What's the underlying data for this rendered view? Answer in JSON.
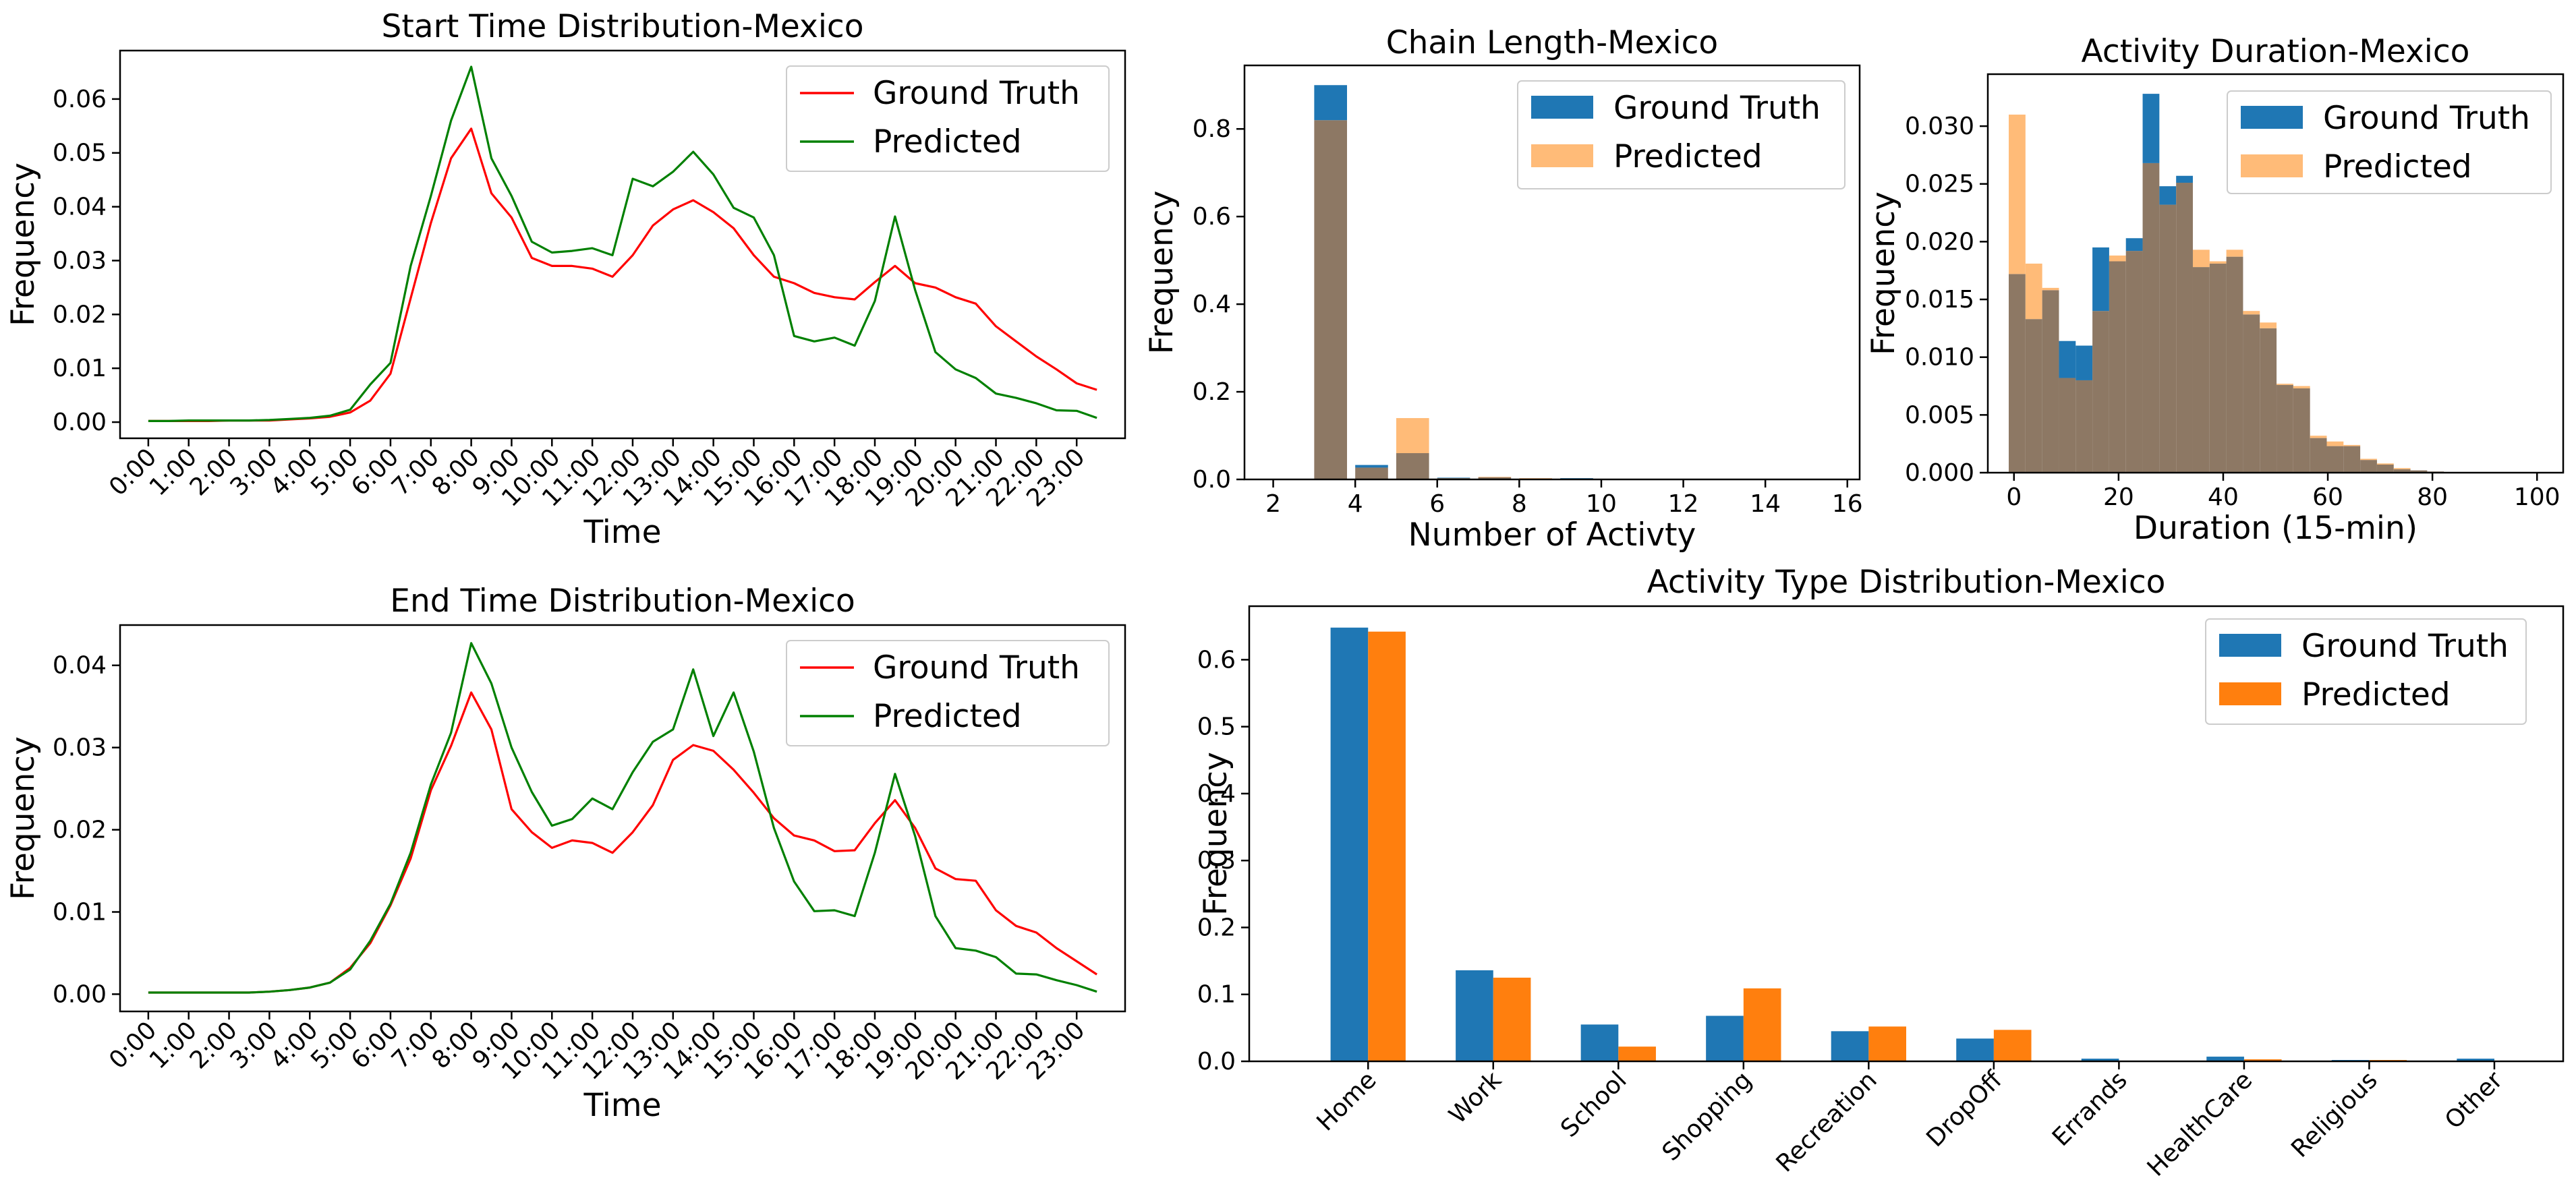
{
  "colors": {
    "red_line": "#ff0000",
    "green_line": "#008000",
    "hist_gt": "#1f77b4",
    "hist_pred": "#ffbb78",
    "hist_overlap": "#8d7864",
    "bar_gt": "#1f77b4",
    "bar_pred": "#ff7f0e"
  },
  "chart_data": [
    {
      "id": "start",
      "type": "line",
      "title": "Start Time Distribution-Mexico",
      "xlabel": "Time",
      "ylabel": "Frequency",
      "xlim": [
        -1.4,
        48.4
      ],
      "ylim": [
        -0.003,
        0.069
      ],
      "yticks": [
        0,
        0.01,
        0.02,
        0.03,
        0.04,
        0.05,
        0.06
      ],
      "ytick_labels": [
        "0.00",
        "0.01",
        "0.02",
        "0.03",
        "0.04",
        "0.05",
        "0.06"
      ],
      "xticks": [
        0,
        2,
        4,
        6,
        8,
        10,
        12,
        14,
        16,
        18,
        20,
        22,
        24,
        26,
        28,
        30,
        32,
        34,
        36,
        38,
        40,
        42,
        44,
        46
      ],
      "xtick_labels": [
        "0:00",
        "1:00",
        "2:00",
        "3:00",
        "4:00",
        "5:00",
        "6:00",
        "7:00",
        "8:00",
        "9:00",
        "10:00",
        "11:00",
        "12:00",
        "13:00",
        "14:00",
        "15:00",
        "16:00",
        "17:00",
        "18:00",
        "19:00",
        "20:00",
        "21:00",
        "22:00",
        "23:00"
      ],
      "series": [
        {
          "name": "Ground Truth",
          "color_key": "red_line",
          "values": [
            0.0002,
            0.0002,
            0.0002,
            0.0002,
            0.0003,
            0.0003,
            0.0003,
            0.0005,
            0.0007,
            0.001,
            0.0018,
            0.004,
            0.009,
            0.023,
            0.037,
            0.049,
            0.0545,
            0.0425,
            0.038,
            0.0305,
            0.029,
            0.029,
            0.0285,
            0.027,
            0.031,
            0.0365,
            0.0395,
            0.0412,
            0.039,
            0.036,
            0.031,
            0.027,
            0.0258,
            0.024,
            0.0232,
            0.0228,
            0.026,
            0.029,
            0.0258,
            0.025,
            0.0232,
            0.022,
            0.0178,
            0.015,
            0.0122,
            0.0098,
            0.0072,
            0.006
          ]
        },
        {
          "name": "Predicted",
          "color_key": "green_line",
          "values": [
            0.0002,
            0.0002,
            0.0003,
            0.0003,
            0.0003,
            0.0003,
            0.0004,
            0.0006,
            0.0008,
            0.0012,
            0.0023,
            0.007,
            0.011,
            0.029,
            0.042,
            0.056,
            0.066,
            0.049,
            0.042,
            0.0335,
            0.0315,
            0.0318,
            0.0323,
            0.031,
            0.0452,
            0.0438,
            0.0465,
            0.0502,
            0.046,
            0.0398,
            0.038,
            0.031,
            0.016,
            0.015,
            0.0157,
            0.0142,
            0.0225,
            0.0382,
            0.0245,
            0.013,
            0.0098,
            0.0082,
            0.0053,
            0.0045,
            0.0035,
            0.0022,
            0.0021,
            0.0008
          ]
        }
      ]
    },
    {
      "id": "end",
      "type": "line",
      "title": "End Time Distribution-Mexico",
      "xlabel": "Time",
      "ylabel": "Frequency",
      "xlim": [
        -1.4,
        48.4
      ],
      "ylim": [
        -0.0021,
        0.0449
      ],
      "yticks": [
        0,
        0.01,
        0.02,
        0.03,
        0.04
      ],
      "ytick_labels": [
        "0.00",
        "0.01",
        "0.02",
        "0.03",
        "0.04"
      ],
      "xticks": [
        0,
        2,
        4,
        6,
        8,
        10,
        12,
        14,
        16,
        18,
        20,
        22,
        24,
        26,
        28,
        30,
        32,
        34,
        36,
        38,
        40,
        42,
        44,
        46
      ],
      "xtick_labels": [
        "0:00",
        "1:00",
        "2:00",
        "3:00",
        "4:00",
        "5:00",
        "6:00",
        "7:00",
        "8:00",
        "9:00",
        "10:00",
        "11:00",
        "12:00",
        "13:00",
        "14:00",
        "15:00",
        "16:00",
        "17:00",
        "18:00",
        "19:00",
        "20:00",
        "21:00",
        "22:00",
        "23:00"
      ],
      "series": [
        {
          "name": "Ground Truth",
          "color_key": "red_line",
          "values": [
            0.0002,
            0.0002,
            0.0002,
            0.0002,
            0.0002,
            0.0002,
            0.0003,
            0.0005,
            0.0008,
            0.0014,
            0.0032,
            0.0062,
            0.0108,
            0.0165,
            0.0248,
            0.0302,
            0.0367,
            0.0322,
            0.0225,
            0.0197,
            0.0178,
            0.0187,
            0.0184,
            0.0172,
            0.0197,
            0.023,
            0.0285,
            0.0303,
            0.0296,
            0.0273,
            0.0245,
            0.0214,
            0.0193,
            0.0187,
            0.0174,
            0.0175,
            0.0208,
            0.0236,
            0.0202,
            0.0153,
            0.014,
            0.0138,
            0.0102,
            0.0083,
            0.0075,
            0.0056,
            0.004,
            0.0024
          ]
        },
        {
          "name": "Predicted",
          "color_key": "green_line",
          "values": [
            0.0002,
            0.0002,
            0.0002,
            0.0002,
            0.0002,
            0.0002,
            0.0003,
            0.0005,
            0.0008,
            0.0014,
            0.003,
            0.0065,
            0.011,
            0.0172,
            0.0255,
            0.0318,
            0.0427,
            0.0378,
            0.03,
            0.0246,
            0.0205,
            0.0213,
            0.0238,
            0.0225,
            0.027,
            0.0307,
            0.0322,
            0.0395,
            0.0314,
            0.0367,
            0.0295,
            0.0202,
            0.0137,
            0.0101,
            0.0102,
            0.0095,
            0.0172,
            0.0268,
            0.0192,
            0.0095,
            0.0056,
            0.0053,
            0.0045,
            0.0025,
            0.0024,
            0.0017,
            0.0011,
            0.0003
          ]
        }
      ]
    },
    {
      "id": "chain",
      "type": "bar",
      "title": "Chain Length-Mexico",
      "xlabel": "Number of Activty",
      "ylabel": "Frequency",
      "xlim": [
        1.3,
        16.3
      ],
      "ylim": [
        0,
        0.945
      ],
      "bin_width": 0.8,
      "xticks": [
        2,
        4,
        6,
        8,
        10,
        12,
        14,
        16
      ],
      "xtick_labels": [
        "2",
        "4",
        "6",
        "8",
        "10",
        "12",
        "14",
        "16"
      ],
      "yticks": [
        0,
        0.2,
        0.4,
        0.6,
        0.8
      ],
      "ytick_labels": [
        "0.0",
        "0.2",
        "0.4",
        "0.6",
        "0.8"
      ],
      "bin_starts": [
        2,
        3,
        4,
        5,
        6,
        7,
        8,
        9,
        10,
        11,
        12,
        13,
        14,
        15
      ],
      "series": [
        {
          "name": "Ground Truth",
          "color_key": "hist_gt",
          "values": [
            0.001,
            0.9,
            0.033,
            0.06,
            0.004,
            0.005,
            0.002,
            0.003,
            0.001,
            0.001,
            0.001,
            0,
            0,
            0
          ]
        },
        {
          "name": "Predicted",
          "color_key": "hist_pred",
          "values": [
            0.001,
            0.82,
            0.027,
            0.14,
            0.003,
            0.006,
            0.003,
            0.002,
            0.001,
            0.001,
            0.001,
            0,
            0,
            0
          ]
        }
      ]
    },
    {
      "id": "duration",
      "type": "bar",
      "title": "Activity Duration-Mexico",
      "xlabel": "Duration (15-min)",
      "ylabel": "Frequency",
      "xlim": [
        -5,
        105
      ],
      "ylim": [
        0,
        0.0345
      ],
      "bin_width": 3.2,
      "xticks": [
        0,
        20,
        40,
        60,
        80,
        100
      ],
      "xtick_labels": [
        "0",
        "20",
        "40",
        "60",
        "80",
        "100"
      ],
      "yticks": [
        0,
        0.005,
        0.01,
        0.015,
        0.02,
        0.025,
        0.03
      ],
      "ytick_labels": [
        "0.000",
        "0.005",
        "0.010",
        "0.015",
        "0.020",
        "0.025",
        "0.030"
      ],
      "bin_starts": [
        -1,
        2.2,
        5.4,
        8.6,
        11.8,
        15,
        18.2,
        21.4,
        24.6,
        27.8,
        31,
        34.2,
        37.4,
        40.6,
        43.8,
        47,
        50.2,
        53.4,
        56.6,
        59.8,
        63,
        66.2,
        69.4,
        72.6,
        75.8,
        79,
        82.2,
        85.4,
        88.6,
        91.8,
        95
      ],
      "series": [
        {
          "name": "Ground Truth",
          "color_key": "hist_gt",
          "values": [
            0.0172,
            0.0133,
            0.0158,
            0.0114,
            0.011,
            0.0195,
            0.0183,
            0.0203,
            0.0328,
            0.0248,
            0.0257,
            0.0178,
            0.0181,
            0.0187,
            0.0137,
            0.0125,
            0.0076,
            0.0073,
            0.003,
            0.0023,
            0.0023,
            0.0011,
            0.0007,
            0.0003,
            0.0002,
            0.0001,
            0,
            0,
            0,
            0,
            0
          ]
        },
        {
          "name": "Predicted",
          "color_key": "hist_pred",
          "values": [
            0.031,
            0.0181,
            0.016,
            0.0082,
            0.008,
            0.014,
            0.0188,
            0.0192,
            0.0268,
            0.0232,
            0.0251,
            0.0193,
            0.0183,
            0.0193,
            0.014,
            0.013,
            0.0077,
            0.0075,
            0.0032,
            0.0027,
            0.0024,
            0.0012,
            0.0008,
            0.0004,
            0.0002,
            0.0001,
            0,
            0,
            0,
            0,
            0
          ]
        }
      ]
    },
    {
      "id": "types",
      "type": "bar",
      "title": "Activity Type Distribution-Mexico",
      "xlabel": "",
      "ylabel": "Frequency",
      "ylim": [
        0,
        0.68
      ],
      "yticks": [
        0,
        0.1,
        0.2,
        0.3,
        0.4,
        0.5,
        0.6
      ],
      "ytick_labels": [
        "0.0",
        "0.1",
        "0.2",
        "0.3",
        "0.4",
        "0.5",
        "0.6"
      ],
      "categories": [
        "Home",
        "Work",
        "School",
        "Shopping",
        "Recreation",
        "DropOff",
        "Errands",
        "HealthCare",
        "Religious",
        "Other"
      ],
      "series": [
        {
          "name": "Ground Truth",
          "color_key": "bar_gt",
          "values": [
            0.648,
            0.136,
            0.055,
            0.068,
            0.045,
            0.034,
            0.004,
            0.007,
            0.002,
            0.004
          ]
        },
        {
          "name": "Predicted",
          "color_key": "bar_pred",
          "values": [
            0.642,
            0.125,
            0.022,
            0.109,
            0.052,
            0.047,
            0.001,
            0.003,
            0.002,
            0.001
          ]
        }
      ]
    }
  ]
}
